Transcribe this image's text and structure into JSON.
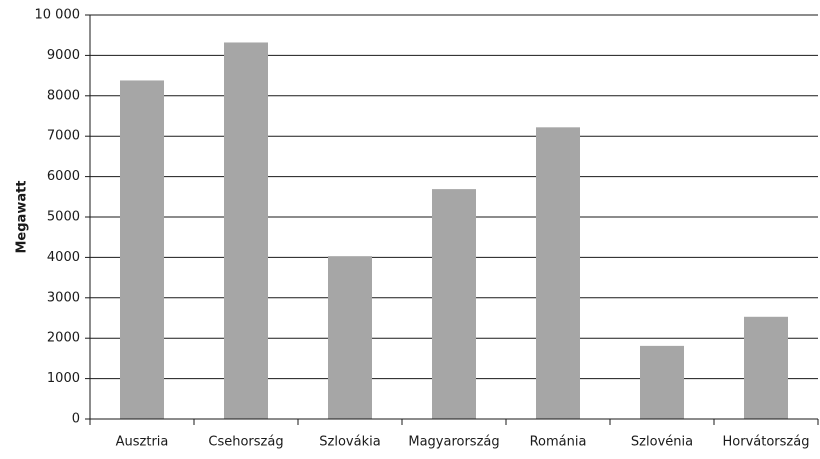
{
  "chart_data": {
    "type": "bar",
    "y_label": "Megawatt",
    "categories": [
      "Ausztria",
      "Csehország",
      "Szlovákia",
      "Magyarország",
      "Románia",
      "Szlovénia",
      "Horvátország"
    ],
    "values": [
      8380,
      9320,
      4030,
      5690,
      7220,
      1810,
      2530
    ],
    "color": "#a6a6a6",
    "ylim": [
      0,
      10000
    ],
    "yticks": [
      0,
      1000,
      2000,
      3000,
      4000,
      5000,
      6000,
      7000,
      8000,
      9000,
      {
        "value": 10000,
        "label": "10 000"
      }
    ],
    "grid": true
  }
}
